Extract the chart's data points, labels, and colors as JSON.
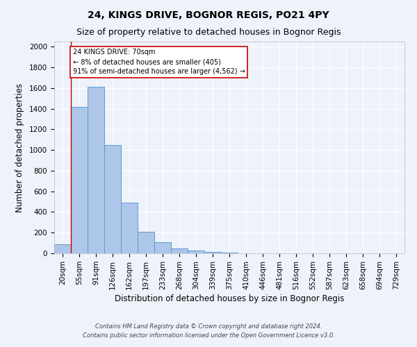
{
  "title": "24, KINGS DRIVE, BOGNOR REGIS, PO21 4PY",
  "subtitle": "Size of property relative to detached houses in Bognor Regis",
  "xlabel": "Distribution of detached houses by size in Bognor Regis",
  "ylabel": "Number of detached properties",
  "footnote1": "Contains HM Land Registry data © Crown copyright and database right 2024.",
  "footnote2": "Contains public sector information licensed under the Open Government Licence v3.0.",
  "bar_labels": [
    "20sqm",
    "55sqm",
    "91sqm",
    "126sqm",
    "162sqm",
    "197sqm",
    "233sqm",
    "268sqm",
    "304sqm",
    "339sqm",
    "375sqm",
    "410sqm",
    "446sqm",
    "481sqm",
    "516sqm",
    "552sqm",
    "587sqm",
    "623sqm",
    "658sqm",
    "694sqm",
    "729sqm"
  ],
  "bar_values": [
    85,
    1420,
    1610,
    1050,
    490,
    210,
    110,
    45,
    25,
    15,
    10,
    0,
    0,
    0,
    0,
    0,
    0,
    0,
    0,
    0,
    0
  ],
  "bar_color": "#aec6e8",
  "bar_edge_color": "#5b9bd5",
  "ylim": [
    0,
    2050
  ],
  "yticks": [
    0,
    200,
    400,
    600,
    800,
    1000,
    1200,
    1400,
    1600,
    1800,
    2000
  ],
  "property_line_x": 1.0,
  "property_line_color": "#cc0000",
  "annotation_text": "24 KINGS DRIVE: 70sqm\n← 8% of detached houses are smaller (405)\n91% of semi-detached houses are larger (4,562) →",
  "annotation_box_color": "#ffffff",
  "annotation_box_edge": "#cc0000",
  "background_color": "#eef2fa",
  "grid_color": "#ffffff",
  "title_fontsize": 10,
  "subtitle_fontsize": 9,
  "axis_label_fontsize": 8.5,
  "tick_fontsize": 7.5,
  "footnote_fontsize": 6
}
